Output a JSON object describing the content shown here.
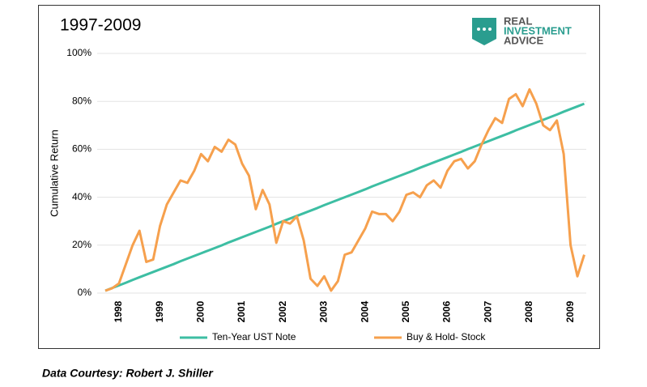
{
  "chart_data": {
    "type": "line",
    "title": "1997-2009",
    "ylabel": "Cumulative Return",
    "categories": [
      null,
      null,
      "1998",
      null,
      null,
      null,
      null,
      null,
      "1999",
      null,
      null,
      null,
      null,
      null,
      "2000",
      null,
      null,
      null,
      null,
      null,
      "2001",
      null,
      null,
      null,
      null,
      null,
      "2002",
      null,
      null,
      null,
      null,
      null,
      "2003",
      null,
      null,
      null,
      null,
      null,
      "2004",
      null,
      null,
      null,
      null,
      null,
      "2005",
      null,
      null,
      null,
      null,
      null,
      "2006",
      null,
      null,
      null,
      null,
      null,
      "2007",
      null,
      null,
      null,
      null,
      null,
      "2008",
      null,
      null,
      null,
      null,
      null,
      "2009",
      null,
      null
    ],
    "series": [
      {
        "name": "Ten-Year UST Note",
        "color": "#3dbea3",
        "values": [
          1,
          2.1,
          3.2,
          4.3,
          5.5,
          6.6,
          7.7,
          8.8,
          9.9,
          11.0,
          12.1,
          13.3,
          14.4,
          15.5,
          16.6,
          17.7,
          18.8,
          19.9,
          21.1,
          22.2,
          23.3,
          24.4,
          25.5,
          26.6,
          27.7,
          28.9,
          30.0,
          31.1,
          32.2,
          33.3,
          34.4,
          35.5,
          36.7,
          37.8,
          38.9,
          40.0,
          41.1,
          42.2,
          43.3,
          44.5,
          45.6,
          46.7,
          47.8,
          48.9,
          50.0,
          51.1,
          52.3,
          53.4,
          54.5,
          55.6,
          56.7,
          57.8,
          58.9,
          60.1,
          61.2,
          62.3,
          63.4,
          64.5,
          65.6,
          66.7,
          67.9,
          69.0,
          70.1,
          71.2,
          72.3,
          73.4,
          74.5,
          75.7,
          76.8,
          77.9,
          79
        ]
      },
      {
        "name": "Buy & Hold- Stock",
        "color": "#f6a04d",
        "values": [
          1,
          2,
          4,
          12,
          20,
          26,
          13,
          14,
          28,
          37,
          42,
          47,
          46,
          51,
          58,
          55,
          61,
          59,
          64,
          62,
          54,
          49,
          35,
          43,
          37,
          21,
          30,
          29,
          32,
          22,
          6,
          3,
          7,
          1,
          5,
          16,
          17,
          22,
          27,
          34,
          33,
          33,
          30,
          34,
          41,
          42,
          40,
          45,
          47,
          44,
          51,
          55,
          56,
          52,
          55,
          62,
          68,
          73,
          71,
          81,
          83,
          78,
          85,
          79,
          70,
          68,
          72,
          58,
          20,
          7,
          16
        ]
      }
    ],
    "ylim": [
      0,
      100
    ],
    "yticks": [
      {
        "value": 0,
        "label": "0%"
      },
      {
        "value": 20,
        "label": "20%"
      },
      {
        "value": 40,
        "label": "40%"
      },
      {
        "value": 60,
        "label": "60%"
      },
      {
        "value": 80,
        "label": "80%"
      },
      {
        "value": 100,
        "label": "100%"
      }
    ],
    "grid": true,
    "legend": "bottom"
  },
  "brand": {
    "lines": [
      "REAL",
      "INVESTMENT",
      "ADVICE"
    ]
  },
  "footer": "Data Courtesy: Robert J. Shiller"
}
